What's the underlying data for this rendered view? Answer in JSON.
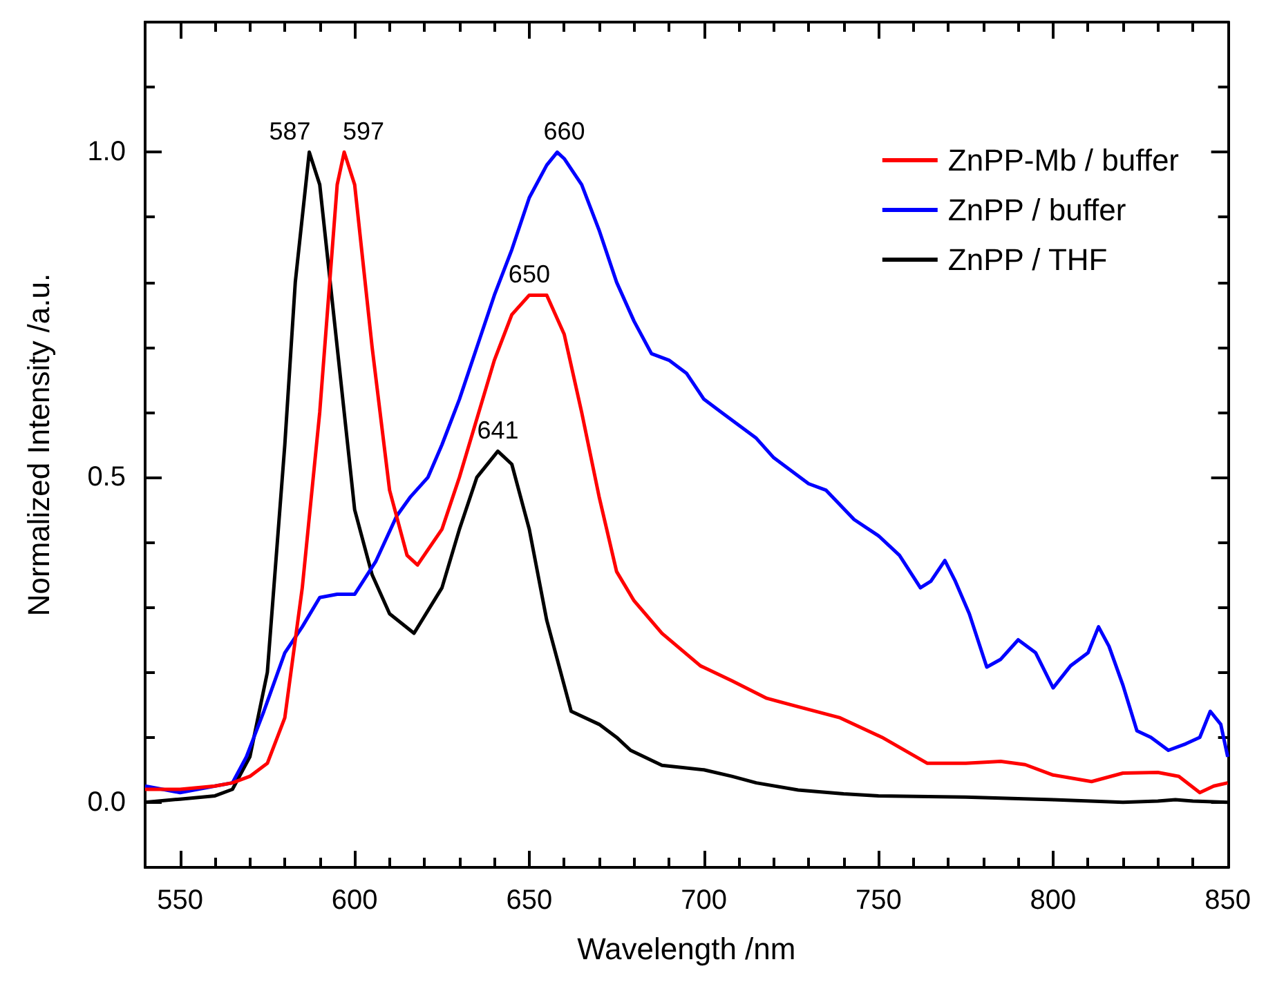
{
  "chart_data": {
    "type": "line",
    "xlabel": "Wavelength /nm",
    "ylabel": "Normalized Intensity /a.u.",
    "xlim": [
      540,
      850
    ],
    "xticks": [
      550,
      600,
      650,
      700,
      750,
      800,
      850
    ],
    "ylim": [
      -0.1,
      1.2
    ],
    "yticks": [
      {
        "value": 0,
        "label": "0.0"
      },
      {
        "value": 0.5,
        "label": "0.5"
      },
      {
        "value": 1,
        "label": "1.0"
      }
    ],
    "grid": false,
    "legend": "top right",
    "marker": "none",
    "line_style": "solid",
    "series": [
      {
        "name": "ZnPP-Mb / buffer",
        "color": "#ff0000",
        "x": [
          540,
          550,
          560,
          565,
          570,
          575,
          580,
          585,
          590,
          595,
          597,
          600,
          605,
          610,
          615,
          618,
          625,
          630,
          640,
          645,
          650,
          655,
          660,
          665,
          670,
          675,
          680,
          688,
          699,
          708,
          718,
          727,
          739,
          751,
          764,
          775,
          785,
          792,
          800,
          811,
          820,
          830,
          836,
          842,
          846,
          850
        ],
        "values": [
          0.02,
          0.02,
          0.025,
          0.03,
          0.04,
          0.06,
          0.13,
          0.33,
          0.6,
          0.95,
          1.0,
          0.95,
          0.7,
          0.48,
          0.38,
          0.365,
          0.42,
          0.5,
          0.68,
          0.75,
          0.78,
          0.78,
          0.72,
          0.6,
          0.47,
          0.355,
          0.31,
          0.26,
          0.21,
          0.187,
          0.16,
          0.147,
          0.13,
          0.1,
          0.06,
          0.06,
          0.063,
          0.058,
          0.042,
          0.032,
          0.045,
          0.046,
          0.04,
          0.015,
          0.025,
          0.03
        ]
      },
      {
        "name": "ZnPP / buffer",
        "color": "#0000ff",
        "x": [
          540,
          545,
          550,
          555,
          560,
          565,
          569,
          574,
          580,
          585,
          590,
          595,
          600,
          606,
          612,
          616,
          621,
          625,
          630,
          635,
          640,
          645,
          650,
          655,
          658,
          660,
          665,
          670,
          675,
          680,
          685,
          690,
          695,
          700,
          705,
          710,
          715,
          720,
          730,
          735,
          743,
          750,
          756,
          762,
          765,
          769,
          772,
          776,
          781,
          785,
          790,
          795,
          800,
          805,
          810,
          813,
          816,
          820,
          824,
          828,
          833,
          838,
          842,
          845,
          848,
          850
        ],
        "values": [
          0.025,
          0.02,
          0.015,
          0.02,
          0.025,
          0.03,
          0.07,
          0.14,
          0.23,
          0.27,
          0.315,
          0.32,
          0.32,
          0.37,
          0.44,
          0.47,
          0.5,
          0.55,
          0.62,
          0.7,
          0.78,
          0.85,
          0.93,
          0.98,
          1.0,
          0.99,
          0.95,
          0.88,
          0.8,
          0.74,
          0.69,
          0.68,
          0.66,
          0.62,
          0.6,
          0.58,
          0.56,
          0.53,
          0.49,
          0.48,
          0.435,
          0.41,
          0.38,
          0.33,
          0.34,
          0.372,
          0.34,
          0.29,
          0.208,
          0.22,
          0.25,
          0.23,
          0.176,
          0.21,
          0.23,
          0.27,
          0.24,
          0.18,
          0.11,
          0.1,
          0.08,
          0.09,
          0.1,
          0.14,
          0.12,
          0.07
        ]
      },
      {
        "name": "ZnPP / THF",
        "color": "#000000",
        "x": [
          540,
          550,
          560,
          565,
          570,
          575,
          580,
          583,
          587,
          590,
          595,
          600,
          605,
          610,
          617,
          625,
          630,
          635,
          641,
          645,
          650,
          655,
          662,
          670,
          675,
          679,
          688,
          700,
          708,
          715,
          727,
          740,
          750,
          775,
          800,
          820,
          830,
          835,
          840,
          850
        ],
        "values": [
          0.0,
          0.005,
          0.01,
          0.02,
          0.07,
          0.2,
          0.55,
          0.8,
          1.0,
          0.95,
          0.7,
          0.45,
          0.35,
          0.29,
          0.26,
          0.33,
          0.42,
          0.5,
          0.54,
          0.52,
          0.42,
          0.28,
          0.14,
          0.12,
          0.1,
          0.08,
          0.057,
          0.05,
          0.04,
          0.03,
          0.019,
          0.013,
          0.01,
          0.008,
          0.004,
          0.0,
          0.002,
          0.004,
          0.002,
          0.0
        ]
      }
    ],
    "annotations": [
      {
        "text": "587",
        "x": 587,
        "y": 1.0
      },
      {
        "text": "597",
        "x": 597,
        "y": 1.0
      },
      {
        "text": "660",
        "x": 660,
        "y": 1.0
      },
      {
        "text": "650",
        "x": 650,
        "y": 0.78
      },
      {
        "text": "641",
        "x": 641,
        "y": 0.54
      }
    ]
  }
}
